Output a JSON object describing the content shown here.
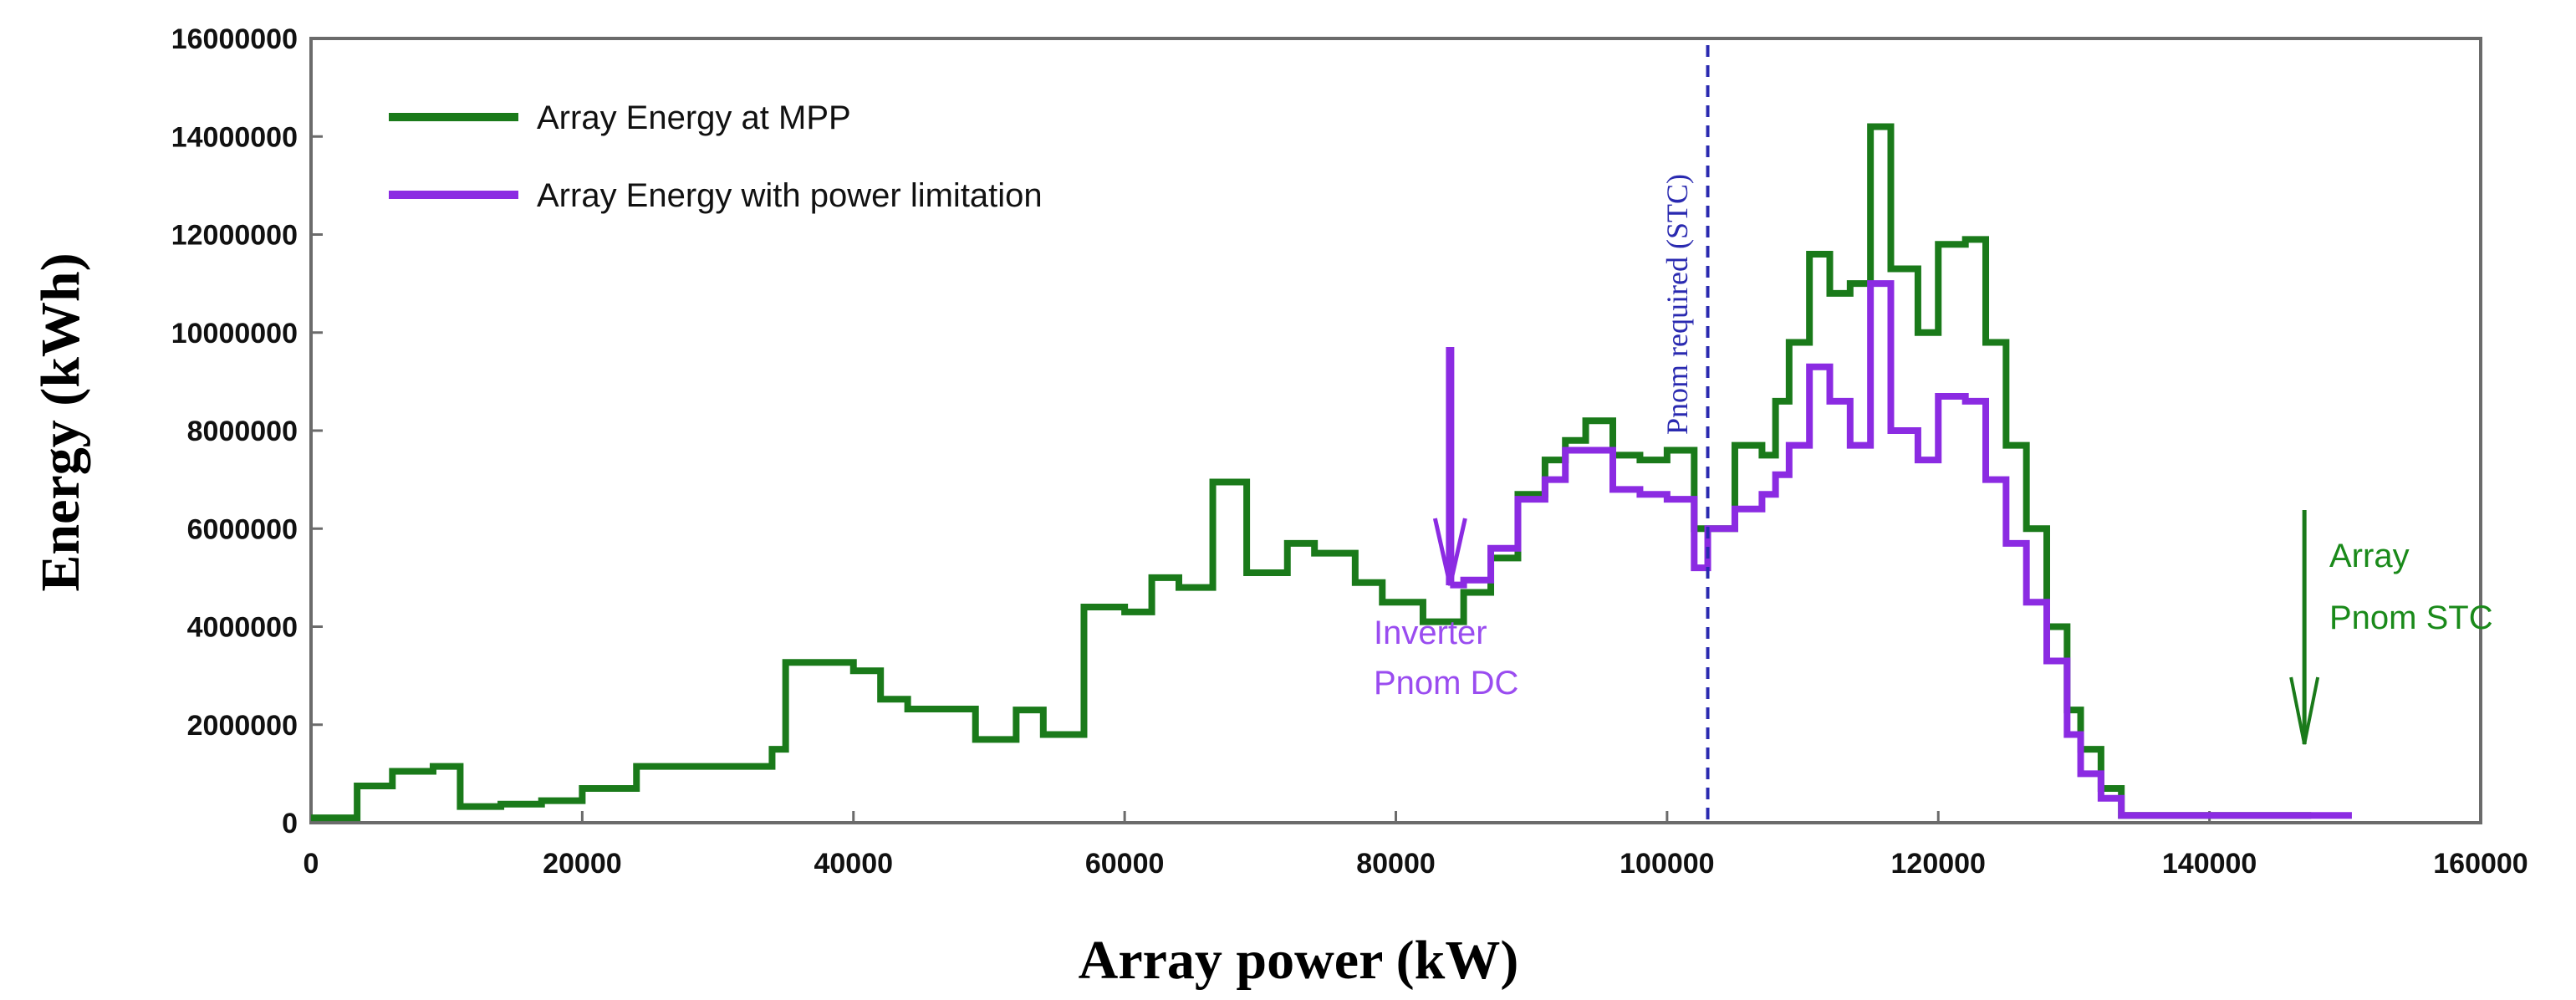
{
  "chart_data": {
    "type": "line",
    "step": true,
    "xlabel": "Array power (kW)",
    "ylabel": "Energy (kWh)",
    "xlim": [
      0,
      160000
    ],
    "ylim": [
      0,
      16000000
    ],
    "xticks": [
      "0",
      "20000",
      "40000",
      "60000",
      "80000",
      "100000",
      "120000",
      "140000",
      "160000"
    ],
    "yticks": [
      "0",
      "2000000",
      "4000000",
      "6000000",
      "8000000",
      "10000000",
      "12000000",
      "14000000",
      "16000000"
    ],
    "grid": false,
    "legend_position": "top-left",
    "series": [
      {
        "name": "Array Energy at MPP",
        "color": "#1a7a1a",
        "x": [
          0,
          3400,
          6000,
          9000,
          11000,
          14000,
          17000,
          20000,
          24000,
          34000,
          35000,
          40000,
          42000,
          44000,
          49000,
          52000,
          54000,
          57000,
          60000,
          62000,
          64000,
          66500,
          69000,
          72000,
          74000,
          77000,
          79000,
          82000,
          85000,
          87000,
          89000,
          91000,
          92500,
          94000,
          96000,
          98000,
          100000,
          102000,
          103000,
          105000,
          107000,
          108000,
          109000,
          110500,
          112000,
          113500,
          115000,
          116500,
          118500,
          120000,
          122000,
          123500,
          125000,
          126500,
          128000,
          129500,
          130500,
          132000,
          133500,
          146000
        ],
        "y": [
          100000,
          750000,
          1050000,
          1150000,
          330000,
          380000,
          450000,
          700000,
          1150000,
          1500000,
          3270000,
          3100000,
          2520000,
          2320000,
          1700000,
          2300000,
          1800000,
          4400000,
          4300000,
          5000000,
          4800000,
          6950000,
          5100000,
          5700000,
          5500000,
          4900000,
          4500000,
          4100000,
          4700000,
          5400000,
          6700000,
          7400000,
          7800000,
          8200000,
          7500000,
          7400000,
          7600000,
          6000000,
          6000000,
          7700000,
          7500000,
          8600000,
          9800000,
          11600000,
          10800000,
          11000000,
          14200000,
          11300000,
          10000000,
          11800000,
          11900000,
          9800000,
          7700000,
          6000000,
          4000000,
          2300000,
          1500000,
          700000,
          150000,
          150000
        ]
      },
      {
        "name": "Array Energy with power limitation",
        "color": "#8b2be2",
        "x": [
          84000,
          85000,
          87000,
          89000,
          91000,
          92500,
          94000,
          96000,
          98000,
          100000,
          102000,
          103000,
          105000,
          107000,
          108000,
          109000,
          110500,
          112000,
          113500,
          115000,
          116500,
          118500,
          120000,
          122000,
          123500,
          125000,
          126500,
          128000,
          129500,
          130500,
          132000,
          133500,
          149000
        ],
        "y": [
          4850000,
          4950000,
          5600000,
          6600000,
          7000000,
          7600000,
          7600000,
          6800000,
          6700000,
          6600000,
          5200000,
          6000000,
          6400000,
          6700000,
          7100000,
          7700000,
          9300000,
          8600000,
          7700000,
          11000000,
          8000000,
          7400000,
          8700000,
          8600000,
          7000000,
          5700000,
          4500000,
          3300000,
          1800000,
          1000000,
          500000,
          150000,
          150000
        ]
      }
    ],
    "annotations": {
      "pnom_required_x": 103000,
      "pnom_required_label": "Pnom required (STC)",
      "inverter_pnom_x": 84000,
      "inverter_pnom_label_line1": "Inverter",
      "inverter_pnom_label_line2": "Pnom DC",
      "array_pnom_x": 147000,
      "array_pnom_label_line1": "Array",
      "array_pnom_label_line2": "Pnom STC"
    }
  }
}
